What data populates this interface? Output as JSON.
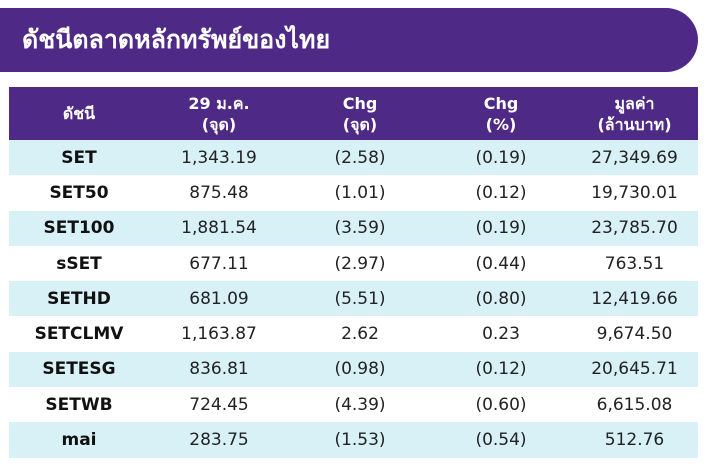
{
  "title": "ดัชนีตลาดหลักทรัพย์ของไทย",
  "table": {
    "headers": [
      {
        "line1": "ดัชนี",
        "line2": ""
      },
      {
        "line1": "29 ม.ค.",
        "line2": "(จุด)"
      },
      {
        "line1": "Chg",
        "line2": "(จุด)"
      },
      {
        "line1": "Chg",
        "line2": "(%)"
      },
      {
        "line1": "มูลค่า",
        "line2": "(ล้านบาท)"
      }
    ],
    "rows": [
      [
        "SET",
        "1,343.19",
        "(2.58)",
        "(0.19)",
        "27,349.69"
      ],
      [
        "SET50",
        "875.48",
        "(1.01)",
        "(0.12)",
        "19,730.01"
      ],
      [
        "SET100",
        "1,881.54",
        "(3.59)",
        "(0.19)",
        "23,785.70"
      ],
      [
        "sSET",
        "677.11",
        "(2.97)",
        "(0.44)",
        "763.51"
      ],
      [
        "SETHD",
        "681.09",
        "(5.51)",
        "(0.80)",
        "12,419.66"
      ],
      [
        "SETCLMV",
        "1,163.87",
        "2.62",
        "0.23",
        "9,674.50"
      ],
      [
        "SETESG",
        "836.81",
        "(0.98)",
        "(0.12)",
        "20,645.71"
      ],
      [
        "SETWB",
        "724.45",
        "(4.39)",
        "(0.60)",
        "6,615.08"
      ],
      [
        "mai",
        "283.75",
        "(1.53)",
        "(0.54)",
        "512.76"
      ]
    ]
  },
  "colors": {
    "header_bg": "#4e2a86",
    "stripe": "#d8f1f7"
  }
}
